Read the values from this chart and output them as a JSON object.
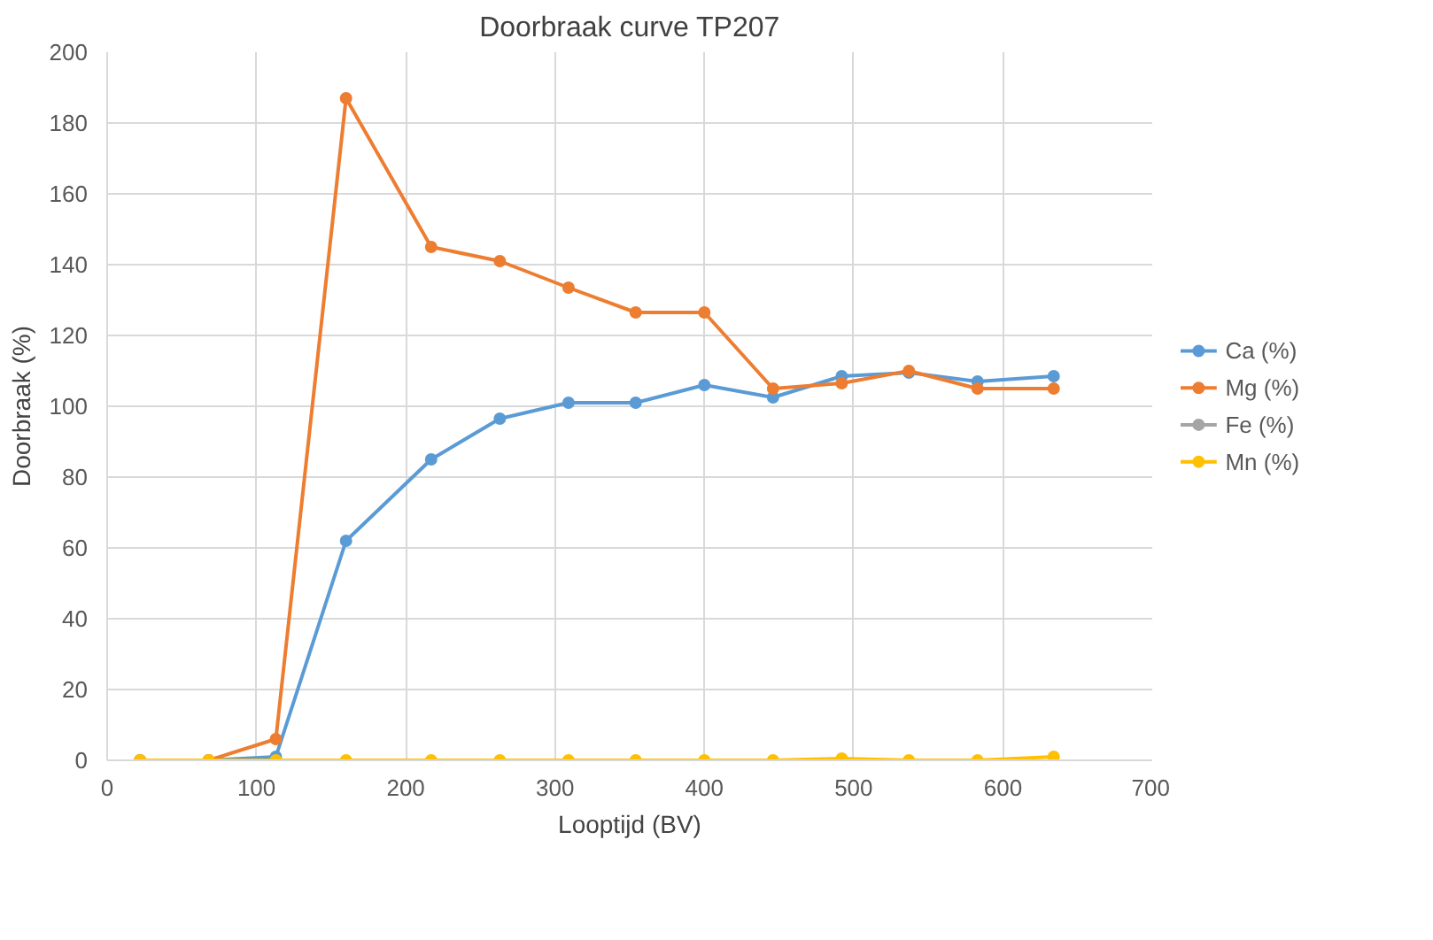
{
  "chart_data": {
    "type": "line",
    "title": "Doorbraak curve TP207",
    "xlabel": "Looptijd (BV)",
    "ylabel": "Doorbraak (%)",
    "x": [
      22,
      68,
      113,
      160,
      217,
      263,
      309,
      354,
      400,
      446,
      492,
      537,
      583,
      634
    ],
    "xlim": [
      0,
      700
    ],
    "xticks": [
      0,
      100,
      200,
      300,
      400,
      500,
      600,
      700
    ],
    "ylim": [
      0,
      200
    ],
    "yticks": [
      0,
      20,
      40,
      60,
      80,
      100,
      120,
      140,
      160,
      180,
      200
    ],
    "grid": true,
    "legend": "right",
    "marker": "circle",
    "line_style": "solid",
    "series": [
      {
        "name": "Ca (%)",
        "color": "#5b9bd5",
        "values": [
          0,
          0,
          1,
          62,
          85,
          96.5,
          101,
          101,
          106,
          102.5,
          108.5,
          109.5,
          107,
          108.5
        ]
      },
      {
        "name": "Mg (%)",
        "color": "#ed7d31",
        "values": [
          0,
          0,
          6,
          187,
          145,
          141,
          133.5,
          126.5,
          126.5,
          105,
          106.5,
          110,
          105,
          105
        ]
      },
      {
        "name": "Fe (%)",
        "color": "#a5a5a5",
        "values": [
          null,
          null,
          null,
          null,
          null,
          null,
          null,
          null,
          null,
          null,
          null,
          null,
          null,
          null
        ]
      },
      {
        "name": "Mn (%)",
        "color": "#ffc000",
        "values": [
          0,
          0,
          0,
          0,
          0,
          0,
          0,
          0,
          0,
          0,
          0.5,
          0,
          0,
          1
        ]
      }
    ]
  }
}
